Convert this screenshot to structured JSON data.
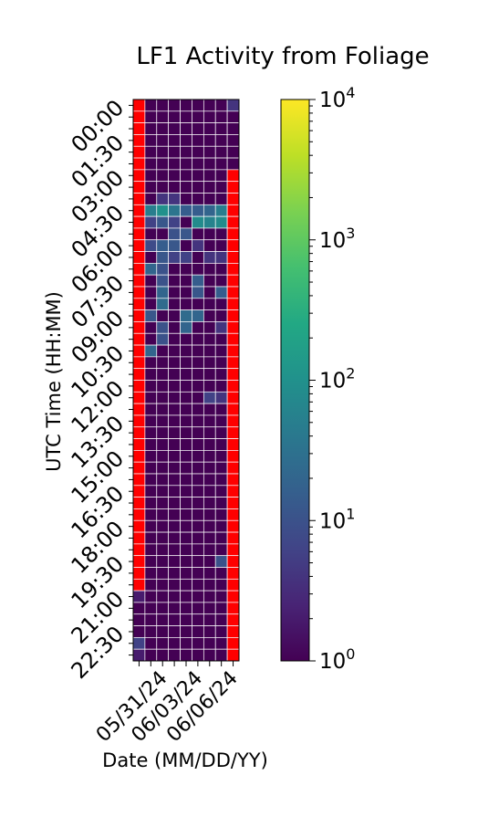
{
  "chart_data": {
    "type": "heatmap",
    "title": "LF1 Activity from Foliage",
    "xlabel": "Date (MM/DD/YY)",
    "ylabel": "UTC Time (HH:MM)",
    "x_tick_labels": [
      "05/31/24",
      "06/03/24",
      "06/06/24"
    ],
    "x_tick_label_columns": [
      2,
      5,
      8
    ],
    "columns": 9,
    "y_tick_labels": [
      "00:00",
      "01:30",
      "03:00",
      "04:30",
      "06:00",
      "07:30",
      "09:00",
      "10:30",
      "12:00",
      "13:30",
      "15:00",
      "16:30",
      "18:00",
      "19:30",
      "21:00",
      "22:30"
    ],
    "y_tick_every_rows": 3,
    "rows": 48,
    "row_interval_minutes": 30,
    "no_data_color": "#ff0000",
    "colormap": "viridis",
    "color_scale": "log",
    "colorbar_range": [
      1,
      10000
    ],
    "colorbar_tick_labels": [
      "10^0",
      "10^1",
      "10^2",
      "10^3",
      "10^4"
    ],
    "values": [
      [
        null,
        1,
        1,
        1,
        1,
        1,
        1,
        1,
        4
      ],
      [
        null,
        1,
        1,
        1,
        1,
        1,
        1,
        1,
        1
      ],
      [
        null,
        1,
        1,
        1,
        1,
        1,
        1,
        1,
        1
      ],
      [
        null,
        1,
        1,
        1,
        1,
        1,
        1,
        1,
        1
      ],
      [
        null,
        1,
        1,
        1,
        1,
        1,
        1,
        1,
        1
      ],
      [
        null,
        1,
        1,
        1,
        1,
        1,
        1,
        1,
        1
      ],
      [
        null,
        1,
        1,
        1,
        1,
        1,
        1,
        1,
        null
      ],
      [
        null,
        1,
        1,
        1,
        1,
        1,
        1,
        1,
        null
      ],
      [
        null,
        1,
        4,
        4,
        1,
        1,
        1,
        1,
        null
      ],
      [
        null,
        50,
        100,
        35,
        15,
        15,
        20,
        50,
        null
      ],
      [
        null,
        6,
        12,
        6,
        1,
        80,
        60,
        80,
        null
      ],
      [
        null,
        1,
        1,
        10,
        12,
        1,
        1,
        1,
        null
      ],
      [
        null,
        8,
        15,
        12,
        1,
        4,
        1,
        1,
        null
      ],
      [
        null,
        1,
        12,
        6,
        6,
        1,
        4,
        4,
        null
      ],
      [
        null,
        20,
        10,
        1,
        1,
        1,
        1,
        1,
        null
      ],
      [
        null,
        1,
        10,
        1,
        1,
        15,
        1,
        1,
        null
      ],
      [
        null,
        1,
        20,
        1,
        1,
        12,
        1,
        15,
        null
      ],
      [
        null,
        1,
        25,
        1,
        1,
        1,
        1,
        1,
        null
      ],
      [
        null,
        12,
        1,
        1,
        25,
        20,
        1,
        1,
        null
      ],
      [
        null,
        1,
        10,
        1,
        20,
        1,
        1,
        4,
        null
      ],
      [
        null,
        1,
        10,
        1,
        1,
        1,
        1,
        1,
        null
      ],
      [
        null,
        20,
        1,
        1,
        1,
        1,
        1,
        1,
        null
      ],
      [
        null,
        1,
        1,
        1,
        1,
        1,
        1,
        1,
        null
      ],
      [
        null,
        1,
        1,
        1,
        1,
        1,
        1,
        1,
        null
      ],
      [
        null,
        1,
        1,
        1,
        1,
        1,
        1,
        1,
        null
      ],
      [
        null,
        1,
        1,
        1,
        1,
        1,
        6,
        4,
        null
      ],
      [
        null,
        1,
        1,
        1,
        1,
        1,
        1,
        1,
        null
      ],
      [
        null,
        1,
        1,
        1,
        1,
        1,
        1,
        1,
        null
      ],
      [
        null,
        1,
        1,
        1,
        1,
        1,
        1,
        1,
        null
      ],
      [
        null,
        1,
        1,
        1,
        1,
        1,
        1,
        1,
        null
      ],
      [
        null,
        1,
        1,
        1,
        1,
        1,
        1,
        1,
        null
      ],
      [
        null,
        1,
        1,
        1,
        1,
        1,
        1,
        1,
        null
      ],
      [
        null,
        1,
        1,
        1,
        1,
        1,
        1,
        1,
        null
      ],
      [
        null,
        1,
        1,
        1,
        1,
        1,
        1,
        1,
        null
      ],
      [
        null,
        1,
        1,
        1,
        1,
        1,
        1,
        1,
        null
      ],
      [
        null,
        1,
        1,
        1,
        1,
        1,
        1,
        1,
        null
      ],
      [
        null,
        1,
        1,
        1,
        1,
        1,
        1,
        1,
        null
      ],
      [
        null,
        1,
        1,
        1,
        1,
        1,
        1,
        1,
        null
      ],
      [
        null,
        1,
        1,
        1,
        1,
        1,
        1,
        1,
        null
      ],
      [
        null,
        1,
        1,
        1,
        1,
        1,
        1,
        10,
        null
      ],
      [
        null,
        1,
        1,
        1,
        1,
        1,
        1,
        1,
        null
      ],
      [
        null,
        1,
        1,
        1,
        1,
        1,
        1,
        1,
        null
      ],
      [
        2,
        1,
        1,
        1,
        1,
        1,
        1,
        1,
        null
      ],
      [
        1,
        1,
        1,
        1,
        1,
        1,
        1,
        1,
        null
      ],
      [
        1,
        1,
        1,
        1,
        1,
        1,
        1,
        1,
        null
      ],
      [
        1,
        1,
        1,
        1,
        1,
        1,
        1,
        1,
        null
      ],
      [
        6,
        1,
        1,
        1,
        1,
        1,
        1,
        1,
        null
      ],
      [
        2,
        1,
        1,
        1,
        1,
        1,
        1,
        1,
        null
      ]
    ]
  }
}
